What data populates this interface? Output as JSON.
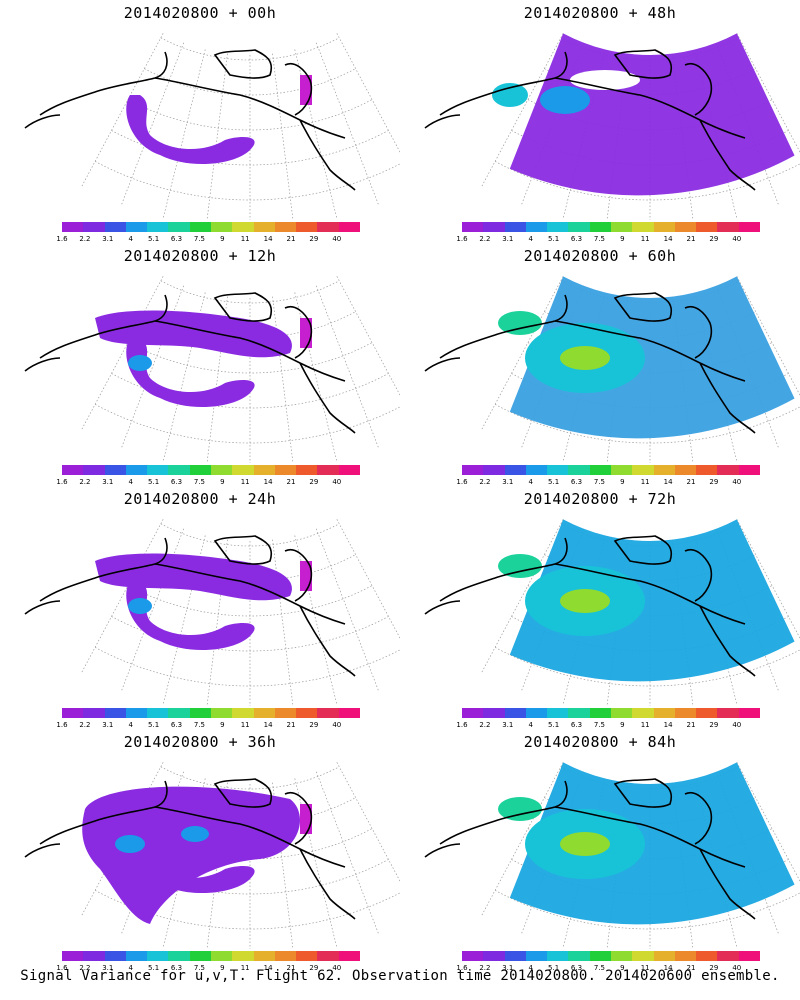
{
  "colors": {
    "scale": [
      "#9a1fd6",
      "#7d2ae0",
      "#3a55e6",
      "#1a9ae8",
      "#18c3d8",
      "#1ad29a",
      "#20cf3a",
      "#8fdb2f",
      "#cfd92f",
      "#e5b12c",
      "#ec8a2b",
      "#ef5a2c",
      "#e32c56",
      "#f0107a"
    ],
    "land_outline": "#000000",
    "grid": "#9a9a9a"
  },
  "colorbar_ticks": [
    "1.6",
    "2.2",
    "3.1",
    "4",
    "5.1",
    "6.3",
    "7.5",
    "9",
    "11",
    "14",
    "21",
    "29",
    "40"
  ],
  "panels": [
    {
      "id": "p00",
      "title": "2014020800 + 00h",
      "level": 0
    },
    {
      "id": "p48",
      "title": "2014020800 + 48h",
      "level": 3
    },
    {
      "id": "p12",
      "title": "2014020800 + 12h",
      "level": 1
    },
    {
      "id": "p60",
      "title": "2014020800 + 60h",
      "level": 4
    },
    {
      "id": "p24",
      "title": "2014020800 + 24h",
      "level": 1
    },
    {
      "id": "p72",
      "title": "2014020800 + 72h",
      "level": 5
    },
    {
      "id": "p36",
      "title": "2014020800 + 36h",
      "level": 2
    },
    {
      "id": "p84",
      "title": "2014020800 + 84h",
      "level": 5
    }
  ],
  "caption": "Signal Variance for u,v,T. Flight 62. Observation time 2014020800. 2014020600 ensemble."
}
